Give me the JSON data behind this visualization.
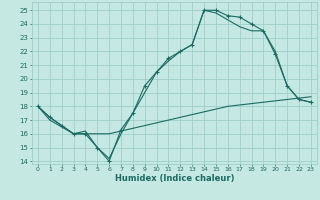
{
  "xlabel": "Humidex (Indice chaleur)",
  "background_color": "#c5e8e2",
  "grid_color": "#9ecec8",
  "line_color": "#1a6b62",
  "xlim": [
    -0.5,
    23.5
  ],
  "ylim": [
    13.8,
    25.6
  ],
  "xticks": [
    0,
    1,
    2,
    3,
    4,
    5,
    6,
    7,
    8,
    9,
    10,
    11,
    12,
    13,
    14,
    15,
    16,
    17,
    18,
    19,
    20,
    21,
    22,
    23
  ],
  "yticks": [
    14,
    15,
    16,
    17,
    18,
    19,
    20,
    21,
    22,
    23,
    24,
    25
  ],
  "curve1_x": [
    0,
    1,
    2,
    3,
    4,
    5,
    6,
    7,
    8,
    9,
    10,
    11,
    12,
    13,
    14,
    15,
    16,
    17,
    18,
    19,
    20,
    21,
    22,
    23
  ],
  "curve1_y": [
    18.0,
    17.2,
    16.6,
    16.0,
    16.0,
    15.0,
    14.0,
    16.3,
    17.5,
    19.5,
    20.5,
    21.5,
    22.0,
    22.5,
    25.0,
    25.0,
    24.6,
    24.5,
    24.0,
    23.5,
    21.8,
    19.5,
    18.5,
    18.3
  ],
  "curve2_x": [
    0,
    1,
    2,
    3,
    4,
    5,
    6,
    7,
    8,
    9,
    10,
    11,
    12,
    13,
    14,
    15,
    16,
    17,
    18,
    19,
    20,
    21,
    22,
    23
  ],
  "curve2_y": [
    18.0,
    17.2,
    16.6,
    16.0,
    16.2,
    15.0,
    14.2,
    16.0,
    17.5,
    19.0,
    20.5,
    21.3,
    22.0,
    22.5,
    25.0,
    24.8,
    24.3,
    23.8,
    23.5,
    23.5,
    22.0,
    19.5,
    18.5,
    18.3
  ],
  "curve3_x": [
    0,
    1,
    2,
    3,
    4,
    5,
    6,
    7,
    8,
    9,
    10,
    11,
    12,
    13,
    14,
    15,
    16,
    17,
    18,
    19,
    20,
    21,
    22,
    23
  ],
  "curve3_y": [
    18.0,
    17.0,
    16.5,
    16.0,
    16.0,
    16.0,
    16.0,
    16.2,
    16.4,
    16.6,
    16.8,
    17.0,
    17.2,
    17.4,
    17.6,
    17.8,
    18.0,
    18.1,
    18.2,
    18.3,
    18.4,
    18.5,
    18.6,
    18.7
  ]
}
